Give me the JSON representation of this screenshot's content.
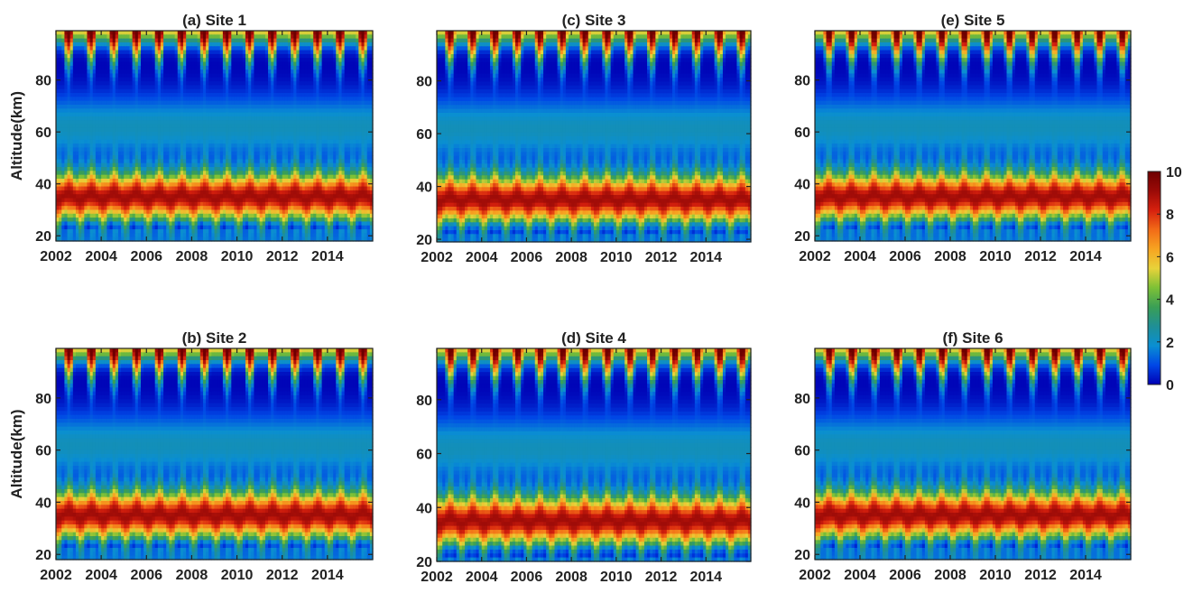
{
  "figure": {
    "colorbar": {
      "min": 0,
      "max": 10,
      "ticks": [
        "0",
        "2",
        "4",
        "6",
        "8",
        "10"
      ],
      "colormap": [
        "#0000b4",
        "#0047e6",
        "#0a8fd2",
        "#1f8f96",
        "#3a9f55",
        "#7ec136",
        "#e8d23a",
        "#f7a421",
        "#f26b17",
        "#d6200e",
        "#9a0a07",
        "#6e0000"
      ]
    }
  },
  "chart_data": [
    {
      "type": "heatmap",
      "title": "(a) Site 1",
      "xlabel": "",
      "ylabel": "Altitude(km)",
      "x_range": [
        2002,
        2016
      ],
      "x_ticks": [
        "2002",
        "2004",
        "2006",
        "2008",
        "2010",
        "2012",
        "2014"
      ],
      "y_range": [
        18,
        99
      ],
      "y_ticks": [
        "20",
        "40",
        "60",
        "80"
      ],
      "value_range": [
        0,
        10
      ],
      "description_values": {
        "lower_peak_altitude_km": 35,
        "lower_peak_value": 9,
        "upper_peak_altitude_km": 96,
        "upper_peak_value": 10,
        "minimum_altitude_km": 78,
        "minimum_value": 0.5,
        "annual_cycles": 14
      }
    },
    {
      "type": "heatmap",
      "title": "(b) Site 2",
      "xlabel": "",
      "ylabel": "Altitude(km)",
      "x_range": [
        2002,
        2016
      ],
      "x_ticks": [
        "2002",
        "2004",
        "2006",
        "2008",
        "2010",
        "2012",
        "2014"
      ],
      "y_range": [
        18,
        99
      ],
      "y_ticks": [
        "20",
        "40",
        "60",
        "80"
      ],
      "value_range": [
        0,
        10
      ],
      "description_values": {
        "lower_peak_altitude_km": 35,
        "lower_peak_value": 9,
        "upper_peak_altitude_km": 96,
        "upper_peak_value": 10,
        "minimum_altitude_km": 78,
        "minimum_value": 0.5,
        "annual_cycles": 14
      }
    },
    {
      "type": "heatmap",
      "title": "(c) Site 3",
      "xlabel": "",
      "ylabel": "",
      "x_range": [
        2002,
        2016
      ],
      "x_ticks": [
        "2002",
        "2004",
        "2006",
        "2008",
        "2010",
        "2012",
        "2014"
      ],
      "y_range": [
        19,
        99
      ],
      "y_ticks": [
        "20",
        "40",
        "60",
        "80"
      ],
      "value_range": [
        0,
        10
      ],
      "description_values": {
        "lower_peak_altitude_km": 35,
        "lower_peak_value": 8.5,
        "upper_peak_altitude_km": 96,
        "upper_peak_value": 10,
        "minimum_altitude_km": 78,
        "minimum_value": 0.5,
        "annual_cycles": 14
      }
    },
    {
      "type": "heatmap",
      "title": "(d) Site 4",
      "xlabel": "",
      "ylabel": "",
      "x_range": [
        2002,
        2016
      ],
      "x_ticks": [
        "2002",
        "2004",
        "2006",
        "2008",
        "2010",
        "2012",
        "2014"
      ],
      "y_range": [
        20,
        99
      ],
      "y_ticks": [
        "20",
        "40",
        "60",
        "80"
      ],
      "value_range": [
        0,
        10
      ],
      "description_values": {
        "lower_peak_altitude_km": 35,
        "lower_peak_value": 8.5,
        "upper_peak_altitude_km": 96,
        "upper_peak_value": 10,
        "minimum_altitude_km": 78,
        "minimum_value": 0.5,
        "annual_cycles": 14
      }
    },
    {
      "type": "heatmap",
      "title": "(e) Site 5",
      "xlabel": "",
      "ylabel": "",
      "x_range": [
        2002,
        2016
      ],
      "x_ticks": [
        "2002",
        "2004",
        "2006",
        "2008",
        "2010",
        "2012",
        "2014"
      ],
      "y_range": [
        18,
        99
      ],
      "y_ticks": [
        "20",
        "40",
        "60",
        "80"
      ],
      "value_range": [
        0,
        10
      ],
      "description_values": {
        "lower_peak_altitude_km": 35,
        "lower_peak_value": 8.5,
        "upper_peak_altitude_km": 96,
        "upper_peak_value": 10,
        "minimum_altitude_km": 78,
        "minimum_value": 0.5,
        "annual_cycles": 14
      }
    },
    {
      "type": "heatmap",
      "title": "(f) Site 6",
      "xlabel": "",
      "ylabel": "",
      "x_range": [
        2002,
        2016
      ],
      "x_ticks": [
        "2002",
        "2004",
        "2006",
        "2008",
        "2010",
        "2012",
        "2014"
      ],
      "y_range": [
        18,
        99
      ],
      "y_ticks": [
        "20",
        "40",
        "60",
        "80"
      ],
      "value_range": [
        0,
        10
      ],
      "description_values": {
        "lower_peak_altitude_km": 35,
        "lower_peak_value": 8.5,
        "upper_peak_altitude_km": 96,
        "upper_peak_value": 10,
        "minimum_altitude_km": 78,
        "minimum_value": 0.5,
        "annual_cycles": 14
      }
    }
  ]
}
